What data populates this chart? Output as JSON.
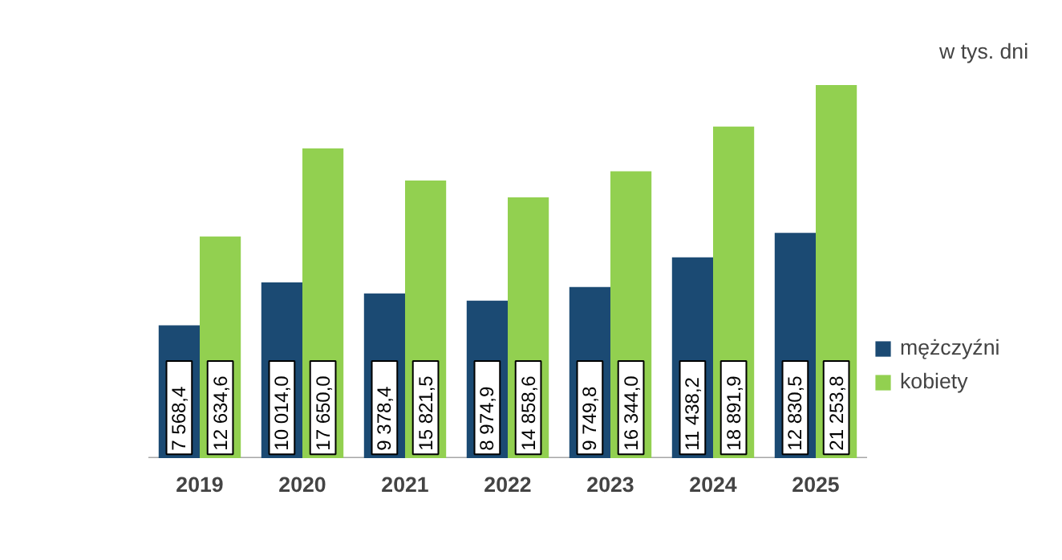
{
  "chart_data": {
    "type": "bar",
    "categories": [
      "2019",
      "2020",
      "2021",
      "2022",
      "2023",
      "2024",
      "2025"
    ],
    "series": [
      {
        "name": "mężczyźni",
        "color": "#1b4a73",
        "values": [
          7568.4,
          10014.0,
          9378.4,
          8974.9,
          9749.8,
          11438.2,
          12830.5
        ],
        "value_labels": [
          "7 568,4",
          "10 014,0",
          "9 378,4",
          "8 974,9",
          "9 749,8",
          "11 438,2",
          "12 830,5"
        ]
      },
      {
        "name": "kobiety",
        "color": "#92d050",
        "values": [
          12634.6,
          17650.0,
          15821.5,
          14858.6,
          16344.0,
          18891.9,
          21253.8
        ],
        "value_labels": [
          "12 634,6",
          "17 650,0",
          "15 821,5",
          "14 858,6",
          "16 344,0",
          "18 891,9",
          "21 253,8"
        ]
      }
    ],
    "annotations": [
      "w tys. dni"
    ],
    "legend": "right",
    "grid": false
  }
}
